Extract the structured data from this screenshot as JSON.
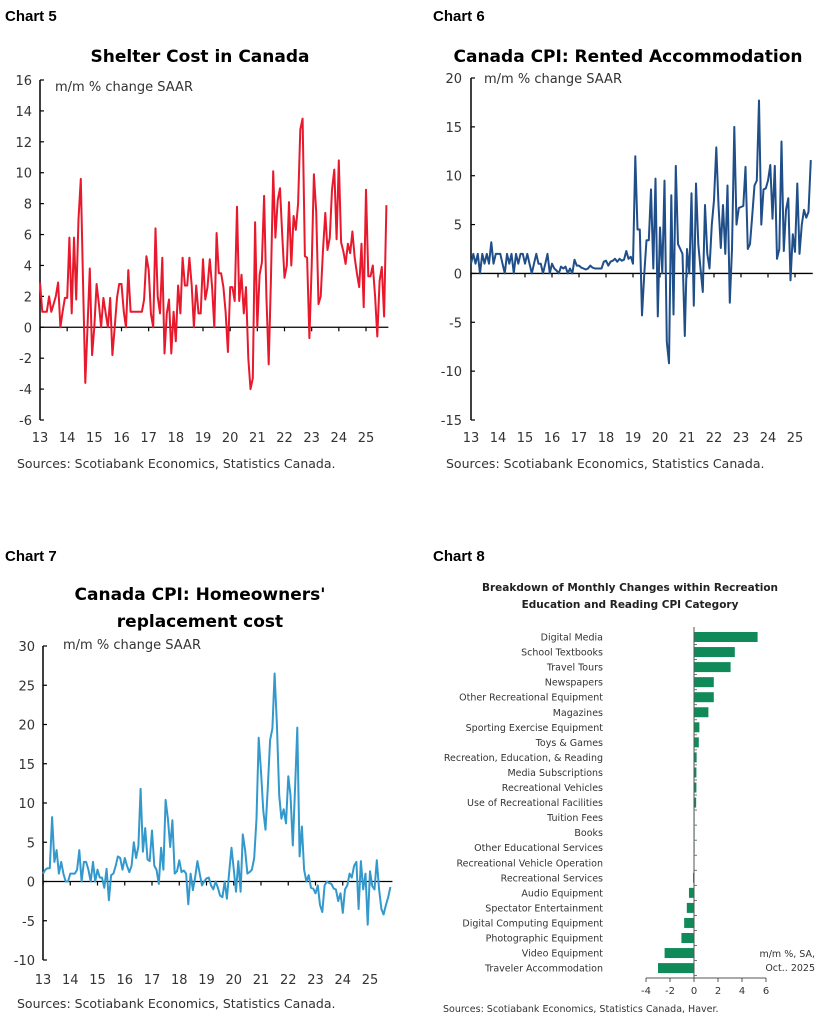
{
  "chart_data": [
    {
      "label": "Chart 5",
      "type": "line",
      "title": "Shelter Cost in Canada",
      "subtitle": "m/m % change SAAR",
      "source": "Sources: Scotiabank Economics, Statistics Canada.",
      "color": "#e8192c",
      "x_start": "2013-01",
      "frequency": "monthly",
      "x_tick_labels": [
        "13",
        "14",
        "15",
        "16",
        "17",
        "18",
        "19",
        "20",
        "21",
        "22",
        "23",
        "24",
        "25"
      ],
      "ylim": [
        -6,
        16
      ],
      "y_ticks": [
        -6,
        -4,
        -2,
        0,
        2,
        4,
        6,
        8,
        10,
        12,
        14,
        16
      ],
      "values": [
        2.9,
        1,
        1,
        1,
        2,
        1,
        1.5,
        2,
        2.9,
        0,
        1,
        1.9,
        1.9,
        5.8,
        0.9,
        5.8,
        1.8,
        7,
        9.6,
        3,
        -3.6,
        0,
        3.8,
        -1.8,
        0,
        2.8,
        1.5,
        0,
        1.9,
        0.9,
        0,
        1.9,
        -1.8,
        0,
        1.9,
        2.8,
        2.8,
        1,
        0,
        3.7,
        1,
        1,
        1,
        1,
        1,
        1,
        1.8,
        4.6,
        3.7,
        0.9,
        0,
        6.4,
        2,
        0.9,
        4.5,
        -1.7,
        0.9,
        1.8,
        -1.7,
        1,
        -0.9,
        2.7,
        0.9,
        4.5,
        2.7,
        2.7,
        4.5,
        2.7,
        0,
        2.7,
        0.9,
        0.9,
        4.4,
        1.8,
        2.6,
        4.4,
        2.6,
        0,
        6.1,
        3.5,
        3.5,
        2.6,
        1,
        -1.6,
        2.6,
        2.6,
        1.7,
        7.8,
        1.7,
        3.4,
        0.9,
        2.6,
        -2,
        -4,
        -3.3,
        6.8,
        0,
        3.4,
        4.2,
        8.5,
        2,
        -2.4,
        3,
        10.1,
        5.8,
        8.2,
        9,
        6,
        3.2,
        4,
        8.1,
        4,
        7.2,
        6.3,
        8,
        12.8,
        13.5,
        4.6,
        4.5,
        -0.7,
        4,
        9.9,
        7.5,
        1.5,
        2,
        5,
        7.4,
        5,
        5.8,
        8.9,
        10.2,
        5.7,
        10.8,
        5.5,
        4.9,
        4.1,
        5.4,
        4.8,
        6.2,
        4.5,
        3.5,
        2.6,
        5.4,
        1.3,
        8.9,
        3.3,
        3.3,
        4,
        2,
        -0.6,
        3,
        3.9,
        0.7,
        7.9
      ]
    },
    {
      "label": "Chart 6",
      "type": "line",
      "title": "Canada CPI: Rented Accommodation",
      "subtitle": "m/m % change SAAR",
      "source": "Sources: Scotiabank Economics, Statistics Canada.",
      "color": "#1f4e89",
      "x_start": "2013-01",
      "frequency": "monthly",
      "x_tick_labels": [
        "13",
        "14",
        "15",
        "16",
        "17",
        "18",
        "19",
        "20",
        "21",
        "22",
        "23",
        "24",
        "25"
      ],
      "ylim": [
        -15,
        20
      ],
      "y_ticks": [
        -15,
        -10,
        -5,
        0,
        5,
        10,
        15,
        20
      ],
      "values": [
        1,
        2,
        1,
        2,
        0,
        2,
        1,
        2,
        1,
        3.2,
        1,
        2,
        2,
        2,
        1,
        0,
        2,
        1,
        2,
        0,
        2,
        1,
        2,
        2,
        1,
        2,
        1,
        0,
        1,
        2,
        1,
        1,
        0,
        1,
        2,
        0,
        1,
        0.5,
        0.3,
        0,
        0.7,
        0.5,
        0.7,
        0,
        0.5,
        0,
        1.4,
        0.8,
        0.8,
        0.6,
        0.5,
        0.4,
        0.5,
        0.8,
        0.6,
        0.5,
        0.5,
        0.5,
        0.5,
        1.2,
        1.3,
        0.8,
        1.2,
        1.3,
        1.5,
        1.2,
        1.5,
        1.3,
        1.4,
        2.3,
        1.5,
        1.7,
        1,
        12,
        4.5,
        4.5,
        -4.3,
        0,
        3.4,
        3.4,
        8.6,
        0.5,
        9.7,
        -4.4,
        4.7,
        0,
        9.5,
        -7,
        -9.2,
        8,
        -4.2,
        11,
        3,
        2.5,
        2,
        -6.4,
        2.5,
        0,
        8.2,
        -3.3,
        9.2,
        3,
        0.5,
        -1.9,
        7,
        2,
        0.5,
        5,
        7.5,
        12.9,
        7,
        2.6,
        7,
        2,
        9,
        -3,
        2.5,
        15,
        5,
        6.7,
        6.8,
        6.9,
        10.9,
        2.5,
        3,
        6,
        9,
        9.5,
        17.7,
        5,
        8.6,
        8.7,
        9.5,
        11.1,
        5.6,
        11,
        1.5,
        2.5,
        13.5,
        2.3,
        6.5,
        7.7,
        -0.7,
        4,
        2.2,
        9.2,
        2,
        5,
        6.5,
        5.7,
        6.3,
        11.6
      ]
    },
    {
      "label": "Chart 7",
      "type": "line",
      "title_lines": [
        "Canada CPI: Homeowners'",
        "replacement cost"
      ],
      "subtitle": "m/m % change SAAR",
      "source": "Sources: Scotiabank Economics, Statistics Canada.",
      "color": "#3399cc",
      "x_start": "2013-01",
      "frequency": "monthly",
      "x_tick_labels": [
        "13",
        "14",
        "15",
        "16",
        "17",
        "18",
        "19",
        "20",
        "21",
        "22",
        "23",
        "24",
        "25"
      ],
      "ylim": [
        -10,
        30
      ],
      "y_ticks": [
        -10,
        -5,
        0,
        5,
        10,
        15,
        20,
        25,
        30
      ],
      "values": [
        1,
        1.5,
        1.7,
        1.7,
        8.2,
        2.5,
        4,
        1,
        2.5,
        1,
        0,
        0,
        1,
        1,
        1,
        1.5,
        4,
        0,
        2.5,
        2.5,
        1.5,
        0,
        2.5,
        0,
        1.5,
        0.5,
        0.5,
        -0.8,
        1.6,
        -2.4,
        0.8,
        1,
        2,
        3.2,
        3,
        1.5,
        3,
        2,
        1.2,
        2,
        5,
        3,
        4.5,
        11.8,
        3.8,
        6.8,
        2.8,
        2.6,
        6.5,
        2,
        1.5,
        -0.3,
        4.3,
        1.5,
        10.4,
        8,
        4.4,
        7.8,
        1,
        1.3,
        2.7,
        1.2,
        1.4,
        1,
        -2.9,
        1,
        -1.1,
        0.5,
        2.6,
        1,
        -0.5,
        0,
        0.4,
        0.5,
        -0.5,
        -1,
        0,
        -0.8,
        -1.8,
        -2,
        0,
        -2.2,
        1.2,
        4.3,
        1.5,
        -1.3,
        2.6,
        -1.3,
        6,
        4,
        1,
        1.2,
        1.5,
        3,
        8,
        18.3,
        14,
        9,
        6.6,
        12,
        18,
        19.5,
        26.5,
        20,
        11,
        8,
        9.2,
        7.4,
        13.4,
        11,
        4.6,
        12,
        19.6,
        3.2,
        7,
        1.5,
        0,
        0.8,
        -0.8,
        -0.9,
        -1.5,
        -0.5,
        -3,
        -3.9,
        -0.5,
        0,
        -0.2,
        -0.3,
        -0.9,
        -1,
        -2.5,
        -1.5,
        -4,
        -1,
        -0.5,
        1,
        0.5,
        2,
        2.5,
        -3.5,
        2.6,
        -1,
        1,
        -5.5,
        1.3,
        -0.6,
        -1,
        2.7,
        -1,
        -3.5,
        -4.2,
        -3,
        -2,
        -0.7
      ]
    },
    {
      "label": "Chart 8",
      "type": "bar",
      "orientation": "horizontal",
      "title_lines": [
        "Breakdown of Monthly Changes within Recreation",
        "Education and Reading CPI Category"
      ],
      "annotation_lines": [
        "m/m %, SA,",
        "Oct.. 2025"
      ],
      "source": "Sources: Scotiabank Economics, Statistics Canada, Haver.",
      "color": "#118a5a",
      "xlim": [
        -4,
        6
      ],
      "x_ticks": [
        -4,
        -2,
        0,
        2,
        4,
        6
      ],
      "categories": [
        "Digital Media",
        "School Textbooks",
        "Travel Tours",
        "Newspapers",
        "Other Recreational Equipment",
        "Magazines",
        "Sporting Exercise Equipment",
        "Toys & Games",
        "Recreation, Education, & Reading",
        "Media Subscriptions",
        "Recreational Vehicles",
        "Use of Recreational Facilities",
        "Tuition Fees",
        "Books",
        "Other Educational Services",
        "Recreational Vehicle Operation",
        "Recreational Services",
        "Audio Equipment",
        "Spectator Entertainment",
        "Digital Computing Equipment",
        "Photographic Equipment",
        "Video Equipment",
        "Traveler Accommodation"
      ],
      "values": [
        5.3,
        3.4,
        3.05,
        1.65,
        1.65,
        1.2,
        0.45,
        0.4,
        0.22,
        0.2,
        0.2,
        0.18,
        0.05,
        0.03,
        0,
        -0.03,
        -0.08,
        -0.42,
        -0.6,
        -0.82,
        -1.05,
        -2.45,
        -3.0
      ]
    }
  ]
}
